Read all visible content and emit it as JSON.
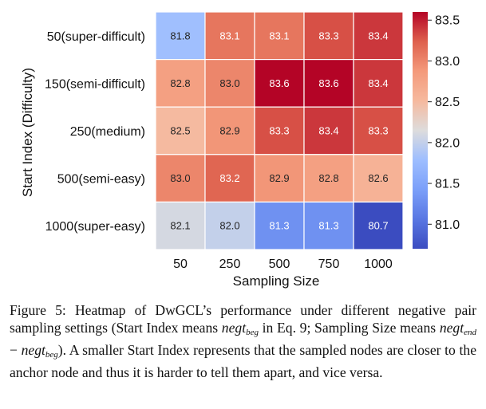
{
  "chart_data": {
    "type": "heatmap",
    "xlabel": "Sampling Size",
    "ylabel": "Start Index (Difficulty)",
    "x_categories": [
      "50",
      "250",
      "500",
      "750",
      "1000"
    ],
    "y_categories": [
      "50(super-difficult)",
      "150(semi-difficult)",
      "250(medium)",
      "500(semi-easy)",
      "1000(super-easy)"
    ],
    "values": [
      [
        81.8,
        83.1,
        83.1,
        83.3,
        83.4
      ],
      [
        82.8,
        83.0,
        83.6,
        83.6,
        83.4
      ],
      [
        82.5,
        82.9,
        83.3,
        83.4,
        83.3
      ],
      [
        83.0,
        83.2,
        82.9,
        82.8,
        82.6
      ],
      [
        82.1,
        82.0,
        81.3,
        81.3,
        80.7
      ]
    ],
    "colormap": "coolwarm",
    "vmin": 80.7,
    "vmax": 83.6,
    "colorbar_ticks": [
      81.0,
      81.5,
      82.0,
      82.5,
      83.0,
      83.5
    ]
  },
  "caption": {
    "label": "Figure 5:",
    "line1": "Heatmap of DwGCL’s performance under different negative",
    "line2a": "pair sampling settings (Start Index means ",
    "negt": "negt",
    "beg": "beg",
    "end": "end",
    "line2b": " in Eq. 9; Sampling",
    "line3a": "Size means ",
    "minus": " − ",
    "line3b": "). A smaller Start Index represents",
    "line4": "that the sampled nodes are closer to the anchor node and thus it is",
    "line5": "harder to tell them apart, and vice versa."
  }
}
